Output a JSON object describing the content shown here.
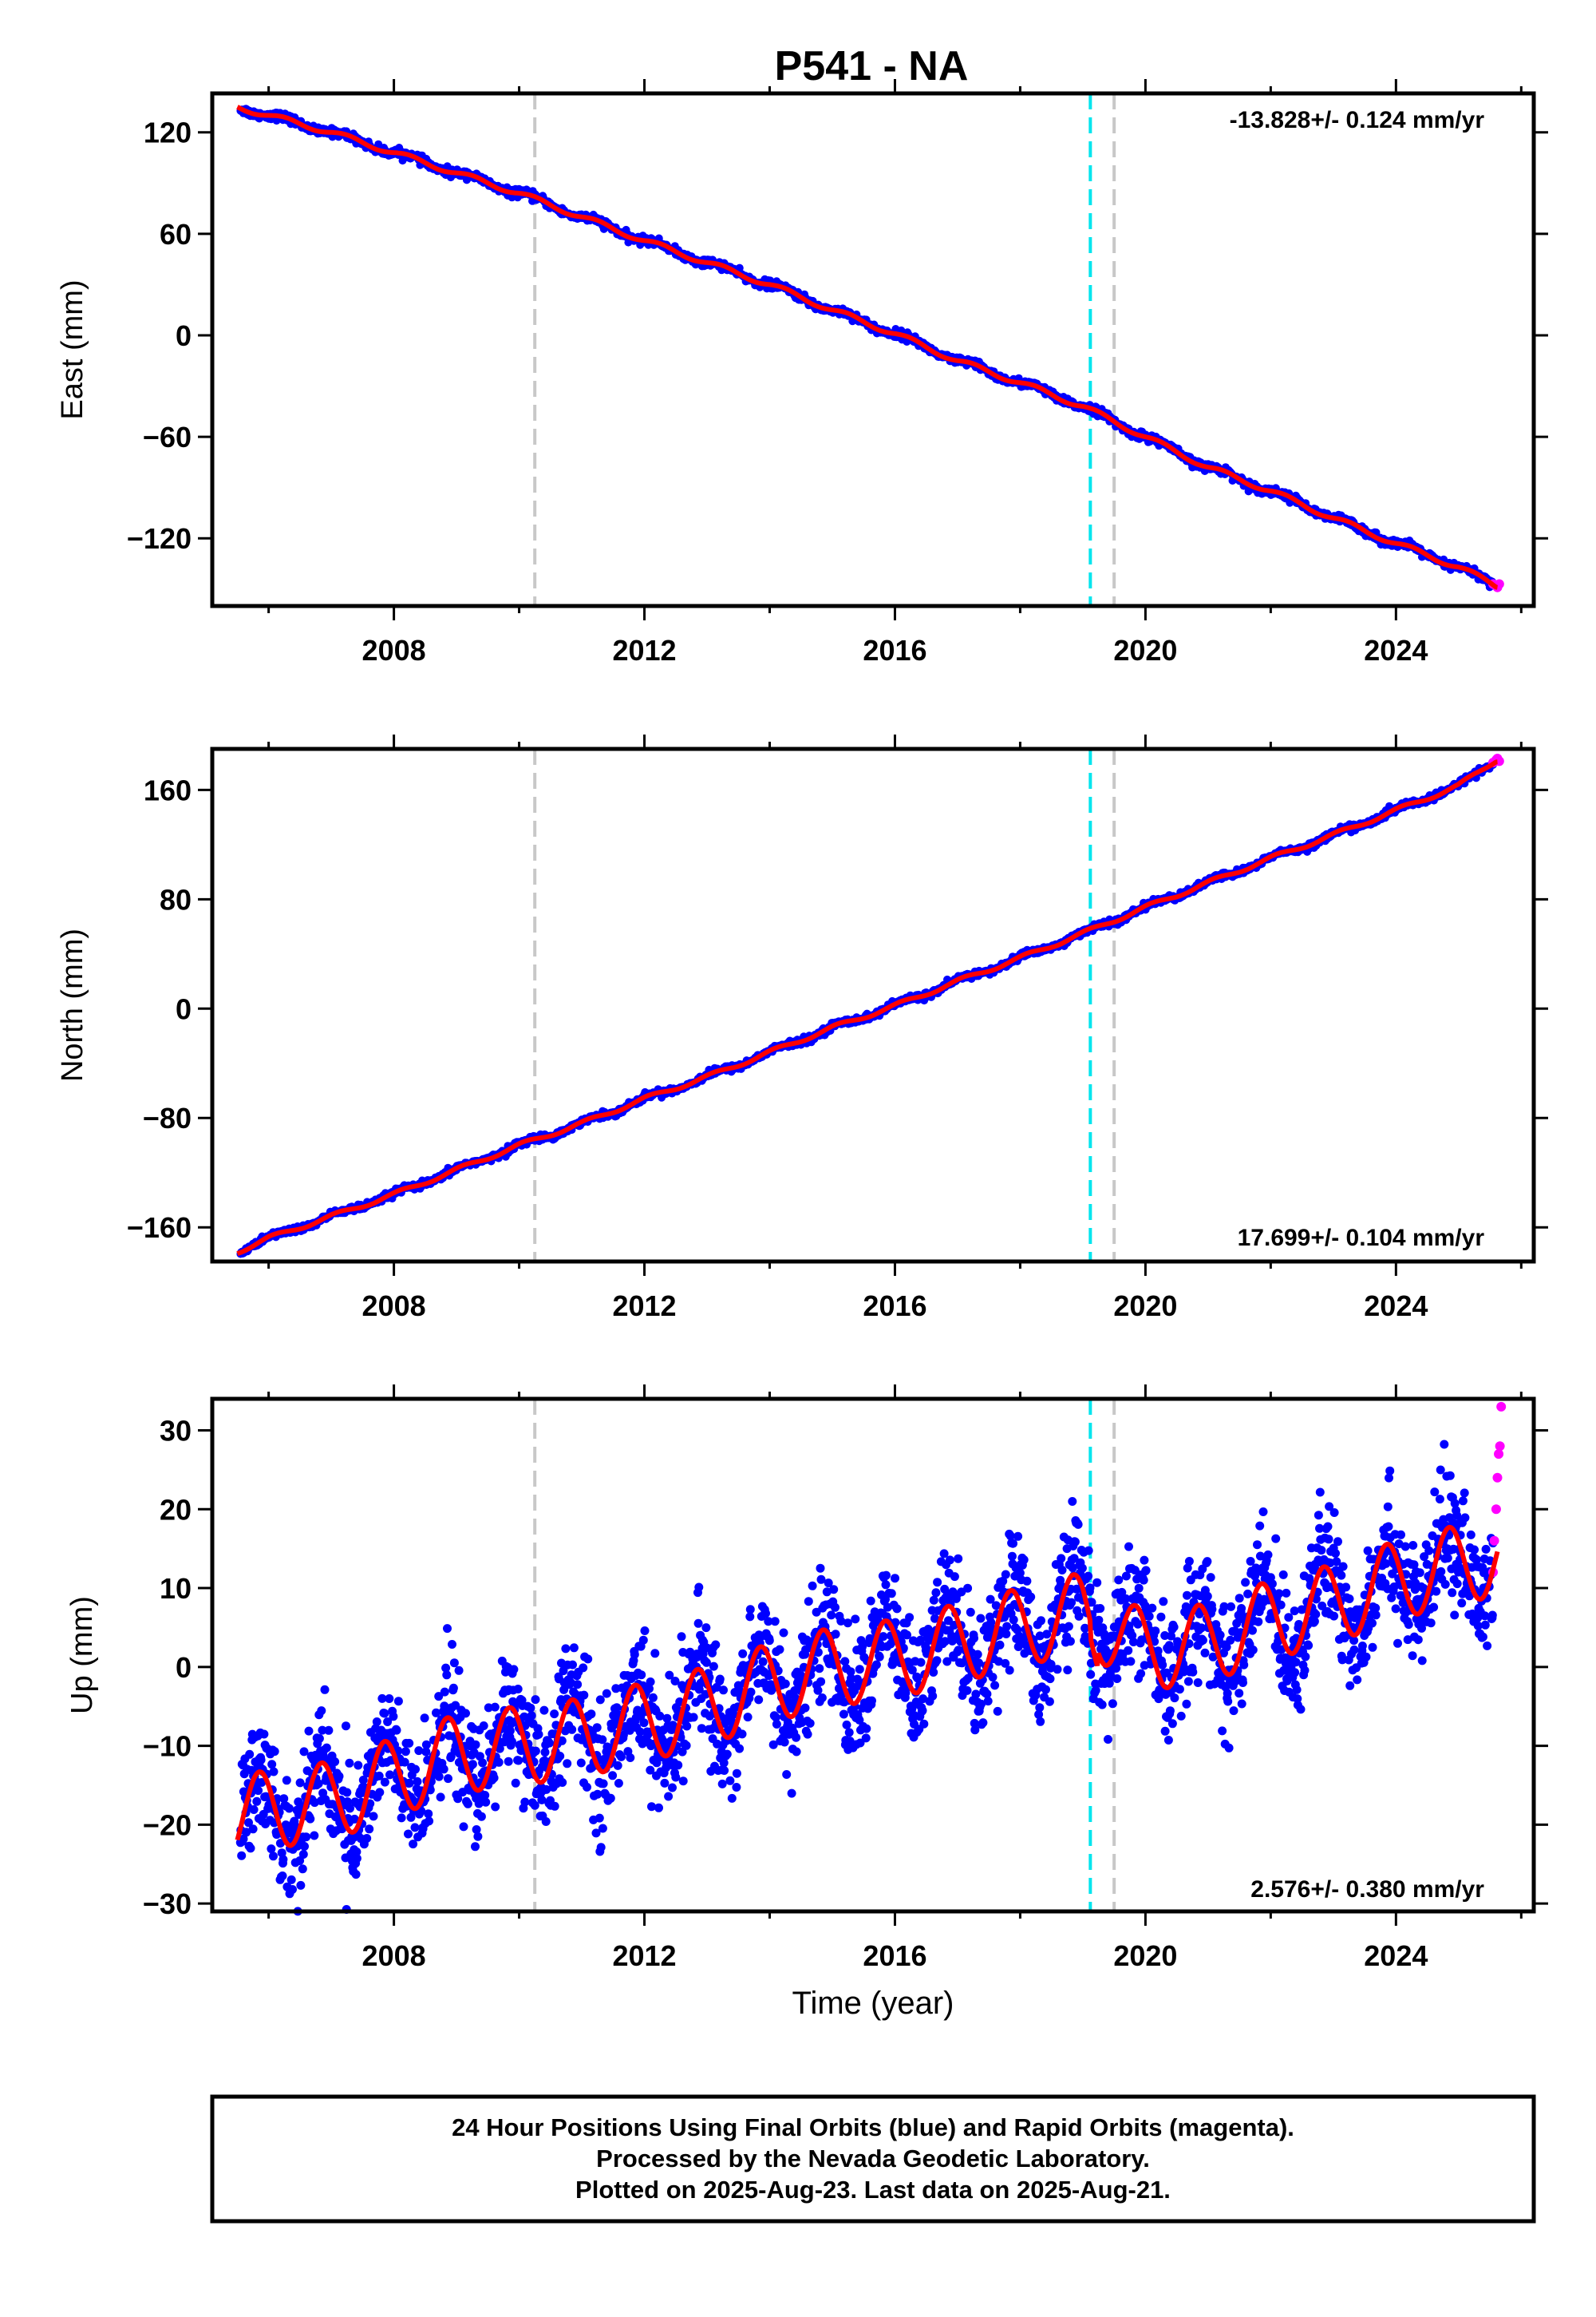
{
  "title": "P541 - NA",
  "colors": {
    "final_orbits": "#0000ff",
    "rapid_orbits": "#ff00ff",
    "model_fit": "#ff0000",
    "equipment_change": "#00e5ee",
    "other_offset": "#c8c8c8",
    "frame": "#000000"
  },
  "chart_data": [
    {
      "type": "scatter",
      "ylabel": "East (mm)",
      "xlabel": "",
      "x_ticks": [
        "2008",
        "2012",
        "2016",
        "2020",
        "2024"
      ],
      "y_ticks": [
        "120",
        "60",
        "0",
        "−60",
        "−120"
      ],
      "xlim": [
        2005.1,
        2026.2
      ],
      "ylim": [
        -160,
        143
      ],
      "rate_label": "-13.828+/- 0.124 mm/yr",
      "rate_label_position": "top-right",
      "velocity_mm_per_yr": -13.828,
      "velocity_sigma": 0.124,
      "grid": false,
      "vertical_markers": [
        {
          "x": 2010.25,
          "style": "gray-dashed"
        },
        {
          "x": 2019.12,
          "style": "cyan-dashed"
        },
        {
          "x": 2019.5,
          "style": "gray-dashed"
        }
      ],
      "series": [
        {
          "role": "final",
          "x": [
            2005.5,
            2006,
            2007,
            2008,
            2009,
            2010,
            2011,
            2012,
            2013,
            2014,
            2015,
            2016,
            2017,
            2018,
            2019,
            2020,
            2021,
            2022,
            2023,
            2024,
            2025,
            2025.6
          ],
          "y": [
            135,
            130,
            120,
            108,
            96,
            84,
            70,
            56,
            43,
            30,
            15,
            1,
            -15,
            -28,
            -42,
            -60,
            -78,
            -92,
            -108,
            -123,
            -137,
            -148
          ]
        },
        {
          "role": "rapid",
          "x": [
            2025.55,
            2025.6,
            2025.62,
            2025.65
          ],
          "y": [
            -147,
            -148,
            -149,
            -147
          ]
        }
      ]
    },
    {
      "type": "scatter",
      "ylabel": "North (mm)",
      "xlabel": "",
      "x_ticks": [
        "2008",
        "2012",
        "2016",
        "2020",
        "2024"
      ],
      "y_ticks": [
        "160",
        "80",
        "0",
        "−80",
        "−160"
      ],
      "xlim": [
        2005.1,
        2026.2
      ],
      "ylim": [
        -185,
        190
      ],
      "rate_label": "17.699+/- 0.104 mm/yr",
      "rate_label_position": "bottom-right",
      "velocity_mm_per_yr": 17.699,
      "velocity_sigma": 0.104,
      "grid": false,
      "vertical_markers": [
        {
          "x": 2010.25,
          "style": "gray-dashed"
        },
        {
          "x": 2019.12,
          "style": "cyan-dashed"
        },
        {
          "x": 2019.5,
          "style": "gray-dashed"
        }
      ],
      "series": [
        {
          "role": "final",
          "x": [
            2005.5,
            2006,
            2007,
            2008,
            2009,
            2010,
            2011,
            2012,
            2013,
            2014,
            2015,
            2016,
            2017,
            2018,
            2019,
            2020,
            2021,
            2022,
            2023,
            2024,
            2025,
            2025.6
          ],
          "y": [
            -178,
            -168,
            -152,
            -136,
            -118,
            -100,
            -84,
            -66,
            -50,
            -32,
            -14,
            2,
            20,
            37,
            55,
            74,
            92,
            110,
            127,
            145,
            163,
            182
          ]
        },
        {
          "role": "rapid",
          "x": [
            2025.55,
            2025.6,
            2025.62,
            2025.65
          ],
          "y": [
            180,
            182,
            183,
            181
          ]
        }
      ]
    },
    {
      "type": "scatter",
      "ylabel": "Up (mm)",
      "xlabel": "Time (year)",
      "x_ticks": [
        "2008",
        "2012",
        "2016",
        "2020",
        "2024"
      ],
      "y_ticks": [
        "30",
        "20",
        "10",
        "0",
        "−10",
        "−20",
        "−30"
      ],
      "xlim": [
        2005.1,
        2026.2
      ],
      "ylim": [
        -31,
        34
      ],
      "rate_label": "2.576+/- 0.380 mm/yr",
      "rate_label_position": "bottom-right",
      "velocity_mm_per_yr": 2.576,
      "velocity_sigma": 0.38,
      "annual_amplitude_mm": 5,
      "grid": false,
      "vertical_markers": [
        {
          "x": 2010.25,
          "style": "gray-dashed"
        },
        {
          "x": 2019.12,
          "style": "cyan-dashed"
        },
        {
          "x": 2019.5,
          "style": "gray-dashed"
        }
      ],
      "series": [
        {
          "role": "final",
          "x": [
            2005.5,
            2006,
            2007,
            2008,
            2009,
            2010,
            2011,
            2012,
            2013,
            2014,
            2015,
            2016,
            2017,
            2018,
            2019,
            2020,
            2021,
            2022,
            2023,
            2024,
            2025,
            2025.6
          ],
          "y": [
            -19,
            -18,
            -17,
            -14,
            -11,
            -10,
            -9,
            -7,
            -5,
            -2,
            0,
            1,
            3,
            5,
            7,
            2,
            3,
            6,
            8,
            11,
            13,
            14
          ]
        },
        {
          "role": "rapid",
          "x": [
            2025.55,
            2025.57,
            2025.6,
            2025.62,
            2025.64,
            2025.66,
            2025.68
          ],
          "y": [
            12,
            16,
            20,
            24,
            27,
            28,
            33
          ]
        }
      ]
    }
  ],
  "footer": {
    "line1": "24 Hour Positions Using Final Orbits (blue) and Rapid Orbits (magenta).",
    "line2": "Processed by the Nevada Geodetic Laboratory.",
    "line3": "Plotted on 2025-Aug-23. Last data on 2025-Aug-21."
  }
}
